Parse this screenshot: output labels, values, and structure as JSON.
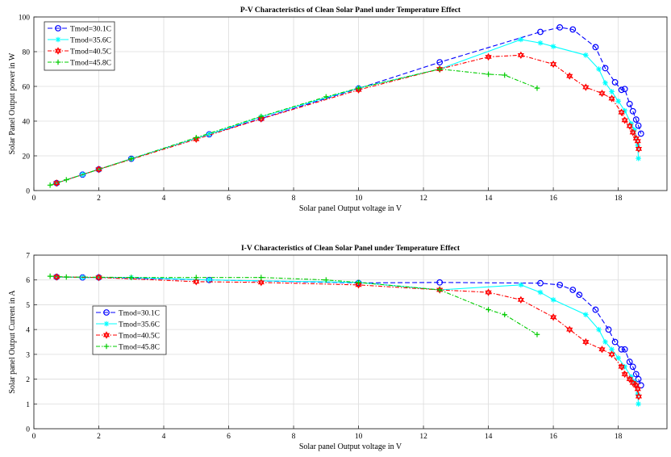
{
  "chart_data": [
    {
      "type": "line",
      "title": "P-V Characteristics of Clean Solar Panel under Temperature Effect",
      "xlabel": "Solar panel Output voltage in V",
      "ylabel": "Solar Panel Output power in W",
      "xlim": [
        0,
        19.5
      ],
      "ylim": [
        0,
        100
      ],
      "xticks": [
        0,
        2,
        4,
        6,
        8,
        10,
        12,
        14,
        16,
        18
      ],
      "yticks": [
        0,
        20,
        40,
        60,
        80,
        100
      ],
      "grid": true,
      "legend_position": "top-left",
      "series": [
        {
          "name": "Tmod=30.1C",
          "color": "#0000ff",
          "dash": "dashed",
          "marker": "circle",
          "x": [
            0.7,
            1.5,
            2.0,
            3.0,
            5.4,
            7.0,
            10.0,
            12.5,
            15.6,
            16.2,
            16.6,
            17.3,
            17.6,
            17.9,
            18.1,
            18.2,
            18.35,
            18.45,
            18.55,
            18.62,
            18.7
          ],
          "y": [
            4.3,
            9.2,
            12.2,
            18.3,
            32.4,
            41.5,
            58.8,
            73.9,
            91.4,
            94.0,
            92.8,
            82.6,
            70.5,
            62.4,
            58.0,
            58.5,
            49.9,
            45.7,
            40.9,
            37.4,
            32.8
          ]
        },
        {
          "name": "Tmod=35.6C",
          "color": "#00ffff",
          "dash": "solid",
          "marker": "star",
          "x": [
            0.7,
            1.5,
            2.0,
            3.0,
            5.4,
            7.0,
            10.0,
            12.5,
            15.0,
            15.6,
            16.0,
            17.0,
            17.4,
            17.6,
            17.8,
            18.0,
            18.2,
            18.4,
            18.5,
            18.6,
            18.62
          ],
          "y": [
            4.3,
            9.2,
            12.2,
            18.3,
            32.4,
            42.5,
            59.0,
            70.0,
            87.0,
            85.0,
            83.0,
            78.0,
            70.0,
            62.0,
            57.0,
            51.5,
            46.0,
            38.5,
            35.0,
            26.0,
            18.5
          ]
        },
        {
          "name": "Tmod=40.5C",
          "color": "#ff0000",
          "dash": "dashdot",
          "marker": "hexagram",
          "x": [
            0.7,
            2.0,
            5.0,
            7.0,
            10.0,
            12.5,
            14.0,
            15.0,
            16.0,
            16.5,
            17.0,
            17.5,
            17.8,
            18.1,
            18.2,
            18.35,
            18.45,
            18.55,
            18.6,
            18.63
          ],
          "y": [
            4.3,
            12.2,
            29.6,
            41.3,
            58.0,
            70.0,
            77.0,
            78.0,
            72.8,
            66.0,
            59.5,
            56.0,
            53.0,
            45.0,
            40.5,
            37.2,
            33.5,
            30.0,
            28.5,
            24.0
          ]
        },
        {
          "name": "Tmod=45.8C",
          "color": "#00cc00",
          "dash": "dashdot",
          "marker": "plus",
          "x": [
            0.5,
            1.0,
            3.0,
            5.0,
            7.0,
            9.0,
            10.0,
            12.5,
            14.0,
            14.5,
            15.5
          ],
          "y": [
            3.1,
            6.2,
            18.3,
            30.5,
            42.7,
            54.0,
            59.0,
            70.0,
            67.0,
            66.5,
            59.0
          ]
        }
      ]
    },
    {
      "type": "line",
      "title": "I-V Characteristics of Clean Solar Panel under Temperature Effect",
      "xlabel": "Solar panel Output voltage in V",
      "ylabel": "Solar panel Output Current in A",
      "xlim": [
        0,
        19.5
      ],
      "ylim": [
        0,
        7
      ],
      "xticks": [
        0,
        2,
        4,
        6,
        8,
        10,
        12,
        14,
        16,
        18
      ],
      "yticks": [
        0,
        1,
        2,
        3,
        4,
        5,
        6,
        7
      ],
      "grid": true,
      "legend_position": "middle-left",
      "series": [
        {
          "name": "Tmod=30.1C",
          "color": "#0000ff",
          "dash": "dashed",
          "marker": "circle",
          "x": [
            0.7,
            1.5,
            2.0,
            5.4,
            10.0,
            12.5,
            15.6,
            16.2,
            16.6,
            16.8,
            17.3,
            17.7,
            17.9,
            18.1,
            18.2,
            18.35,
            18.45,
            18.55,
            18.62,
            18.7
          ],
          "y": [
            6.12,
            6.1,
            6.1,
            6.0,
            5.88,
            5.9,
            5.87,
            5.8,
            5.6,
            5.4,
            4.8,
            4.0,
            3.5,
            3.2,
            3.2,
            2.7,
            2.5,
            2.2,
            2.0,
            1.75
          ]
        },
        {
          "name": "Tmod=35.6C",
          "color": "#00ffff",
          "dash": "solid",
          "marker": "star",
          "x": [
            0.7,
            1.5,
            2.0,
            3.0,
            5.4,
            10.0,
            12.5,
            15.0,
            15.6,
            16.0,
            17.0,
            17.4,
            17.6,
            17.8,
            18.0,
            18.2,
            18.4,
            18.5,
            18.6,
            18.62
          ],
          "y": [
            6.12,
            6.1,
            6.1,
            6.1,
            6.0,
            5.9,
            5.6,
            5.8,
            5.5,
            5.2,
            4.6,
            4.0,
            3.5,
            3.2,
            2.85,
            2.5,
            2.1,
            1.9,
            1.4,
            1.0
          ]
        },
        {
          "name": "Tmod=40.5C",
          "color": "#ff0000",
          "dash": "dashdot",
          "marker": "hexagram",
          "x": [
            0.7,
            2.0,
            5.0,
            7.0,
            10.0,
            12.5,
            14.0,
            15.0,
            16.0,
            16.5,
            17.0,
            17.5,
            17.8,
            18.1,
            18.2,
            18.35,
            18.45,
            18.55,
            18.6,
            18.63
          ],
          "y": [
            6.12,
            6.1,
            5.93,
            5.9,
            5.8,
            5.6,
            5.5,
            5.2,
            4.5,
            4.0,
            3.5,
            3.2,
            3.0,
            2.5,
            2.2,
            2.0,
            1.85,
            1.75,
            1.6,
            1.3
          ]
        },
        {
          "name": "Tmod=45.8C",
          "color": "#00cc00",
          "dash": "dashdot",
          "marker": "plus",
          "x": [
            0.5,
            1.0,
            3.0,
            5.0,
            7.0,
            9.0,
            10.0,
            12.5,
            14.0,
            14.5,
            15.5
          ],
          "y": [
            6.15,
            6.12,
            6.1,
            6.1,
            6.1,
            6.0,
            5.9,
            5.6,
            4.8,
            4.6,
            3.8
          ]
        }
      ]
    }
  ]
}
